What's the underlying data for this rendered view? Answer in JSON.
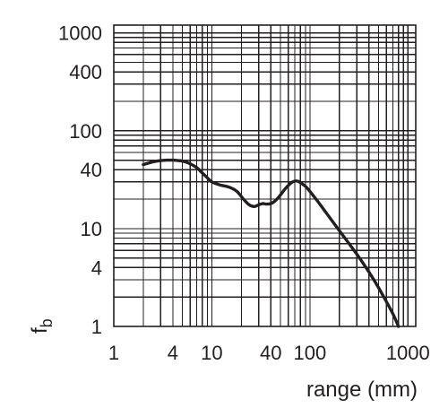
{
  "chart_data": {
    "type": "line",
    "title": "",
    "xlabel": "range (mm)",
    "ylabel": "f_b",
    "ylabel_main": "f",
    "ylabel_sub": "b",
    "x_scale": "log",
    "y_scale": "log",
    "xlim": [
      1,
      1200
    ],
    "ylim": [
      1,
      1200
    ],
    "grid": true,
    "x_tick_labels": [
      {
        "value": 1,
        "label": "1"
      },
      {
        "value": 4,
        "label": "4"
      },
      {
        "value": 10,
        "label": "10"
      },
      {
        "value": 40,
        "label": "40"
      },
      {
        "value": 100,
        "label": "100"
      },
      {
        "value": 1000,
        "label": "1000"
      }
    ],
    "y_tick_labels": [
      {
        "value": 1,
        "label": "1"
      },
      {
        "value": 4,
        "label": "4"
      },
      {
        "value": 10,
        "label": "10"
      },
      {
        "value": 40,
        "label": "40"
      },
      {
        "value": 100,
        "label": "100"
      },
      {
        "value": 400,
        "label": "400"
      },
      {
        "value": 1000,
        "label": "1000"
      }
    ],
    "x_grid": [
      1,
      2,
      3,
      4,
      5,
      6,
      7,
      8,
      9,
      10,
      20,
      30,
      40,
      50,
      60,
      70,
      80,
      90,
      100,
      200,
      300,
      400,
      500,
      600,
      700,
      800,
      900,
      1000
    ],
    "y_grid": [
      1,
      2,
      3,
      4,
      5,
      6,
      7,
      8,
      9,
      10,
      20,
      30,
      40,
      50,
      60,
      70,
      80,
      90,
      100,
      200,
      300,
      400,
      500,
      600,
      700,
      800,
      900,
      1000
    ],
    "series": [
      {
        "x": [
          2,
          2.5,
          3,
          3.5,
          4,
          4.5,
          5,
          6,
          7,
          8,
          9,
          10,
          12,
          15,
          18,
          21,
          24,
          27,
          30,
          33,
          36,
          40,
          45,
          50,
          55,
          60,
          65,
          70,
          75,
          80,
          90,
          100,
          120,
          150,
          200,
          300,
          400,
          500,
          600,
          700,
          800
        ],
        "y": [
          45,
          48,
          49.5,
          50,
          50,
          49.5,
          49,
          46,
          42,
          37,
          33,
          30,
          28,
          26.5,
          24,
          20,
          17.5,
          16.8,
          17.5,
          18,
          17.8,
          18,
          19.5,
          22,
          25,
          27.5,
          29.5,
          30.5,
          30.5,
          29.5,
          27,
          24,
          19,
          14,
          9.5,
          5.5,
          3.6,
          2.5,
          1.8,
          1.35,
          1
        ]
      }
    ]
  }
}
